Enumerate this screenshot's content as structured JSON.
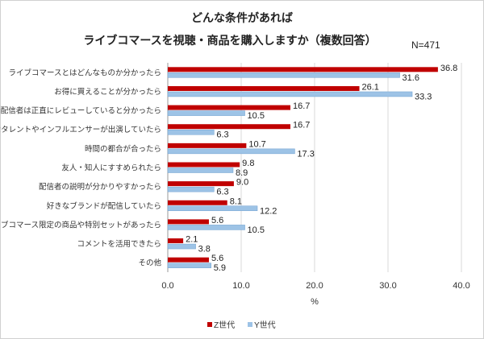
{
  "chart_data": {
    "type": "bar",
    "orientation": "horizontal",
    "title_lines": [
      "どんな条件があれば",
      "ライブコマースを視聴・商品を購入しますか（複数回答）"
    ],
    "annotation": "N=471",
    "categories": [
      "ライブコマースとはどんなものか分かったら",
      "お得に買えることが分かったら",
      "配信者は正直にレビューしていると分かったら",
      "好きなタレントやインフルエンサーが出演していたら",
      "時間の都合が合ったら",
      "友人・知人にすすめられたら",
      "配信者の説明が分かりやすかったら",
      "好きなブランドが配信していたら",
      "ライブコマース限定の商品や特別セットがあったら",
      "コメントを活用できたら",
      "その他"
    ],
    "series": [
      {
        "name": "Z世代",
        "color": "#c00000",
        "values": [
          36.8,
          26.1,
          16.7,
          16.7,
          10.7,
          9.8,
          9.0,
          8.1,
          5.6,
          2.1,
          5.6
        ]
      },
      {
        "name": "Y世代",
        "color": "#9dc3e6",
        "values": [
          31.6,
          33.3,
          10.5,
          6.3,
          17.3,
          8.9,
          6.3,
          12.2,
          10.5,
          3.8,
          5.9
        ]
      }
    ],
    "xlabel": "%",
    "xlim": [
      0,
      40
    ],
    "xticks": [
      "0.0",
      "10.0",
      "20.0",
      "30.0",
      "40.0"
    ],
    "grid": true,
    "legend_position": "bottom"
  }
}
